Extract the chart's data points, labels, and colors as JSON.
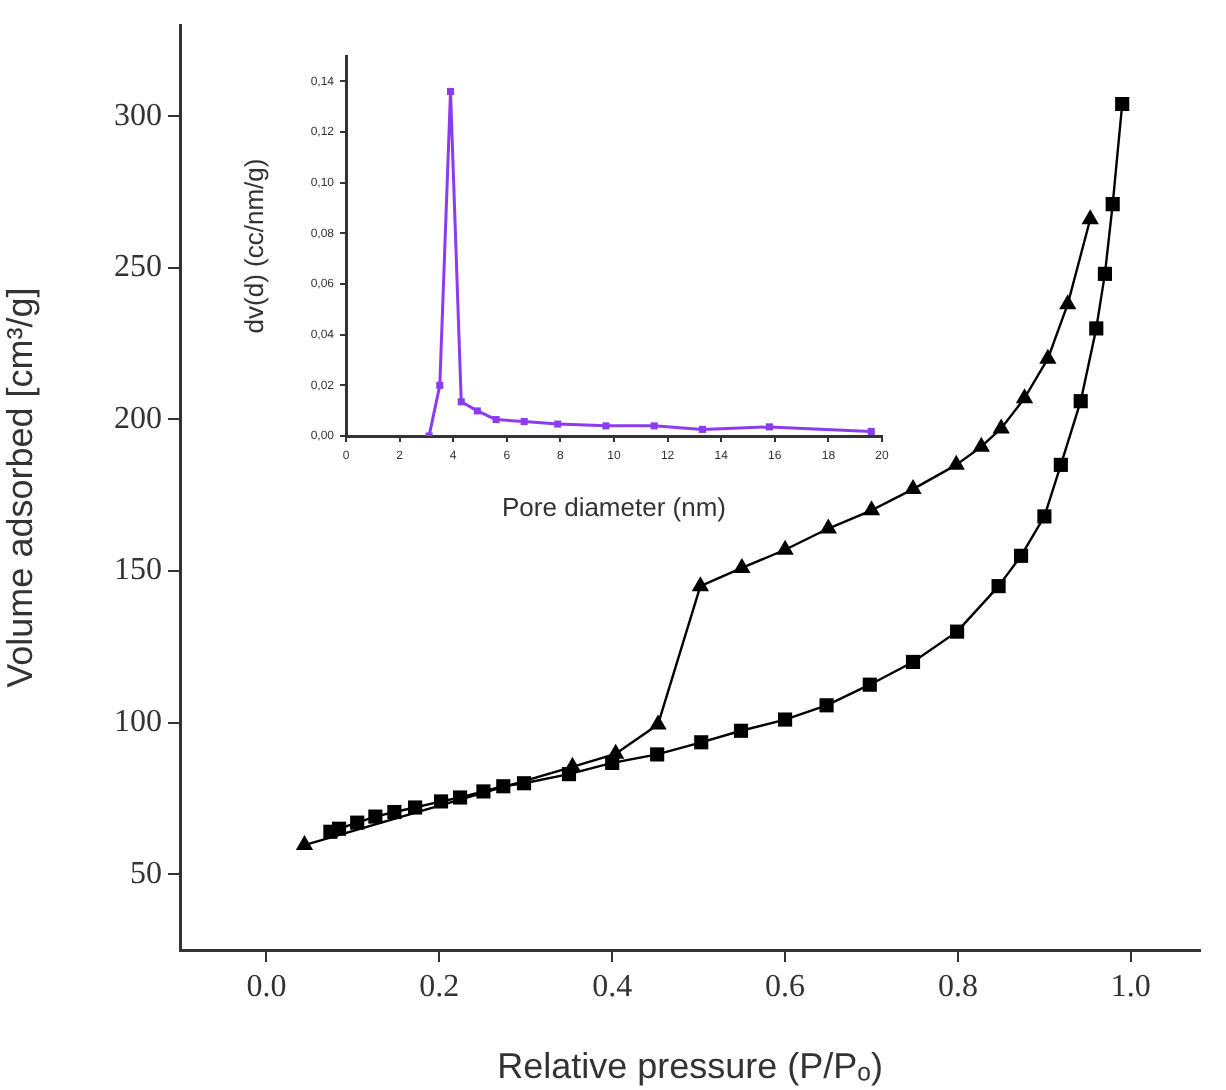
{
  "chart_data": [
    {
      "type": "line",
      "xlabel": "Relative pressure (P/Pₒ)",
      "ylabel": "Volume adsorbed [cm³/g]",
      "xlim": [
        -0.1,
        1.08
      ],
      "ylim": [
        25,
        330
      ],
      "xticks": [
        {
          "value": 0,
          "label": "0.0"
        },
        {
          "value": 0.2,
          "label": "0.2"
        },
        {
          "value": 0.4,
          "label": "0.4"
        },
        {
          "value": 0.6,
          "label": "0.6"
        },
        {
          "value": 0.8,
          "label": "0.8"
        },
        {
          "value": 1,
          "label": "1.0"
        }
      ],
      "yticks": [
        50,
        100,
        150,
        200,
        250,
        300
      ],
      "grid": false,
      "legend": false,
      "line_style": "solid",
      "series": [
        {
          "color": "#000000",
          "marker": "square",
          "x": [
            0.074,
            0.084,
            0.105,
            0.126,
            0.148,
            0.172,
            0.202,
            0.224,
            0.251,
            0.274,
            0.298,
            0.35,
            0.4,
            0.452,
            0.503,
            0.549,
            0.6,
            0.648,
            0.698,
            0.748,
            0.799,
            0.847,
            0.873,
            0.9,
            0.919,
            0.942,
            0.96,
            0.97,
            0.979,
            0.99
          ],
          "values": [
            64,
            65,
            67,
            69,
            70.5,
            72,
            74,
            75.3,
            77.3,
            79,
            80,
            83,
            86.7,
            89.5,
            93.5,
            97.3,
            101,
            105.7,
            112.5,
            120,
            130,
            145,
            155,
            168,
            185,
            206,
            230,
            248,
            271,
            304
          ]
        },
        {
          "color": "#000000",
          "marker": "triangle",
          "x": [
            0.044,
            0.354,
            0.404,
            0.453,
            0.502,
            0.55,
            0.6,
            0.65,
            0.7,
            0.748,
            0.798,
            0.827,
            0.85,
            0.877,
            0.904,
            0.927,
            0.953
          ],
          "values": [
            59.6,
            85.4,
            89.7,
            99.4,
            145,
            151,
            157,
            164,
            170,
            177,
            185,
            191,
            197,
            207,
            220,
            238,
            266
          ]
        }
      ]
    },
    {
      "type": "line",
      "xlabel": "Pore diameter (nm)",
      "ylabel": "dv(d) (cc/nm/g)",
      "xlim": [
        0,
        20
      ],
      "ylim": [
        0,
        0.15
      ],
      "xticks": [
        0,
        2,
        4,
        6,
        8,
        10,
        12,
        14,
        16,
        18,
        20
      ],
      "yticks": [
        {
          "value": 0,
          "label": "0,00"
        },
        {
          "value": 0.02,
          "label": "0,02"
        },
        {
          "value": 0.04,
          "label": "0,04"
        },
        {
          "value": 0.06,
          "label": "0,06"
        },
        {
          "value": 0.08,
          "label": "0,08"
        },
        {
          "value": 0.1,
          "label": "0,10"
        },
        {
          "value": 0.12,
          "label": "0,12"
        },
        {
          "value": 0.14,
          "label": "0,14"
        }
      ],
      "grid": false,
      "legend": false,
      "line_style": "solid",
      "marker": "square",
      "series": [
        {
          "color": "#8b3cf0",
          "x": [
            3.1,
            3.5,
            3.9,
            4.3,
            4.9,
            5.6,
            6.65,
            7.9,
            9.7,
            11.5,
            13.3,
            15.8,
            19.6
          ],
          "values": [
            0,
            0.02,
            0.136,
            0.0135,
            0.0099,
            0.0065,
            0.0057,
            0.0047,
            0.004,
            0.004,
            0.0026,
            0.0036,
            0.0018
          ]
        }
      ]
    }
  ]
}
